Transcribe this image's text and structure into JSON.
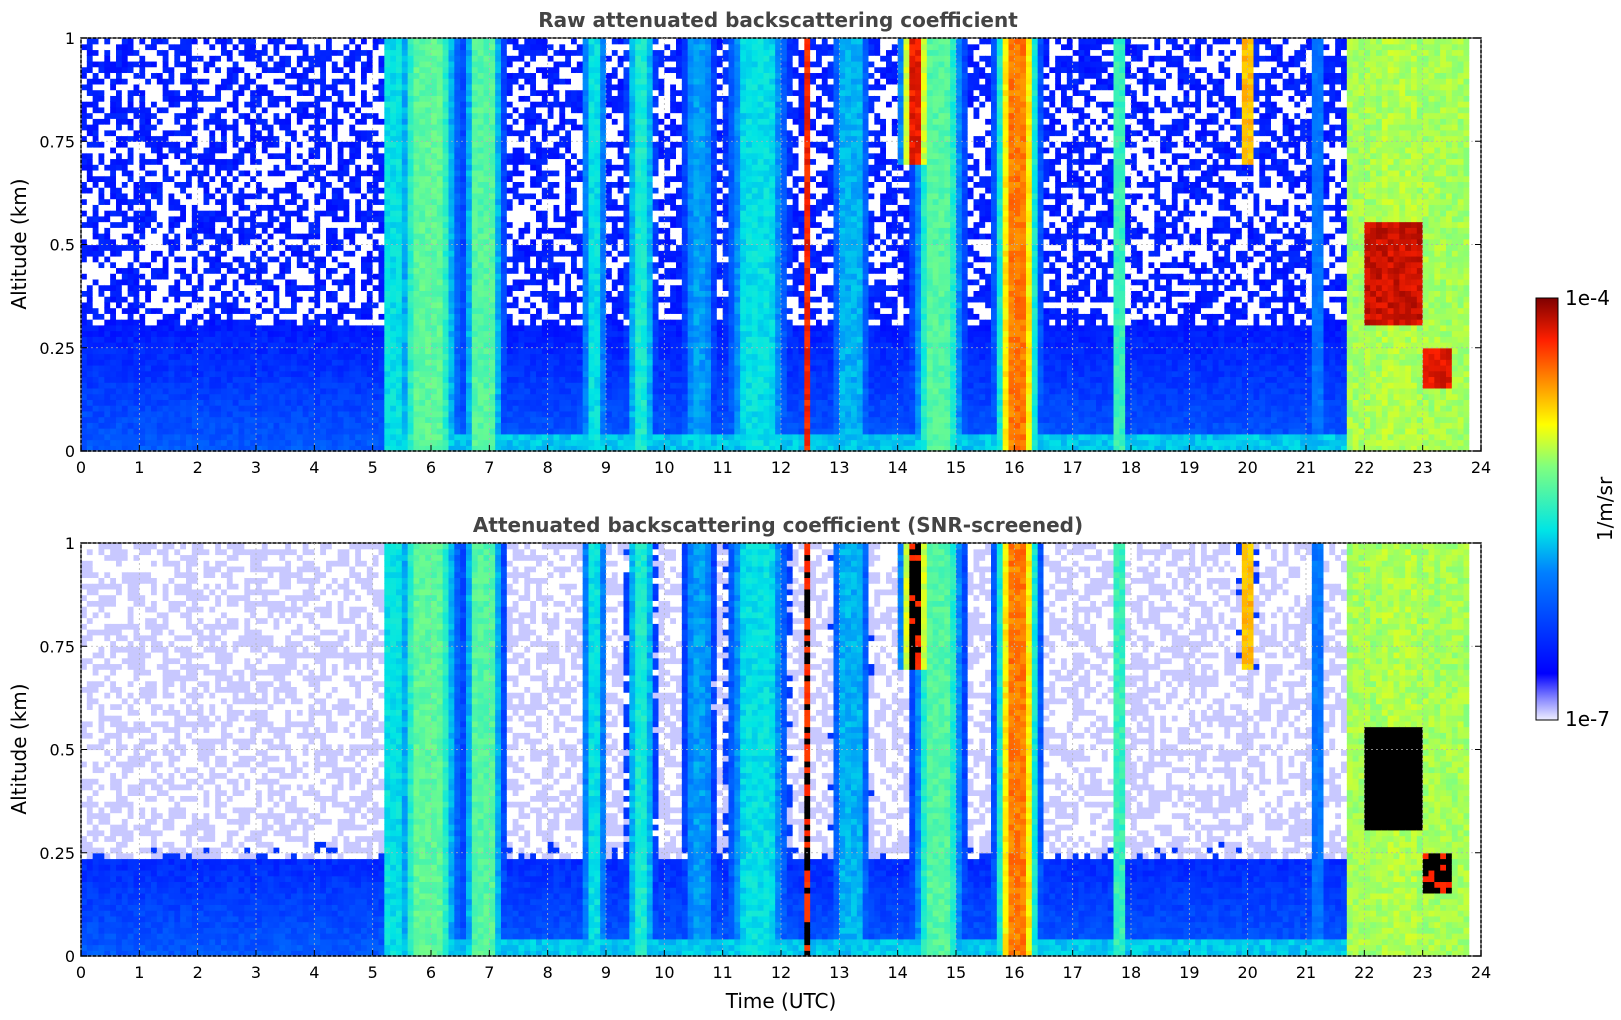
{
  "chart_data": [
    {
      "type": "heatmap",
      "title": "Raw attenuated backscattering coefficient",
      "ylabel": "Altitude (km)",
      "xlabel": "",
      "xlim": [
        0,
        24
      ],
      "ylim": [
        0,
        1
      ],
      "xticks": [
        "0",
        "1",
        "2",
        "3",
        "4",
        "5",
        "6",
        "7",
        "8",
        "9",
        "10",
        "11",
        "12",
        "13",
        "14",
        "15",
        "16",
        "17",
        "18",
        "19",
        "20",
        "21",
        "22",
        "23",
        "24"
      ],
      "yticks": [
        "0",
        "0.25",
        "0.5",
        "0.75",
        "1"
      ],
      "grid": true,
      "screened": false
    },
    {
      "type": "heatmap",
      "title": "Attenuated backscattering coefficient (SNR-screened)",
      "ylabel": "Altitude (km)",
      "xlabel": "Time (UTC)",
      "xlim": [
        0,
        24
      ],
      "ylim": [
        0,
        1
      ],
      "xticks": [
        "0",
        "1",
        "2",
        "3",
        "4",
        "5",
        "6",
        "7",
        "8",
        "9",
        "10",
        "11",
        "12",
        "13",
        "14",
        "15",
        "16",
        "17",
        "18",
        "19",
        "20",
        "21",
        "22",
        "23",
        "24"
      ],
      "yticks": [
        "0",
        "0.25",
        "0.5",
        "0.75",
        "1"
      ],
      "grid": true,
      "screened": true
    }
  ],
  "colorbar": {
    "label": "1/m/sr",
    "max_label": "1e-4",
    "min_label": "1e-7",
    "colormap": "jet",
    "scale": "log"
  },
  "colors": {
    "low": "#eeeeff",
    "mid": "#00e5e5",
    "high": "#7f0000",
    "screened_high": "#000000"
  }
}
